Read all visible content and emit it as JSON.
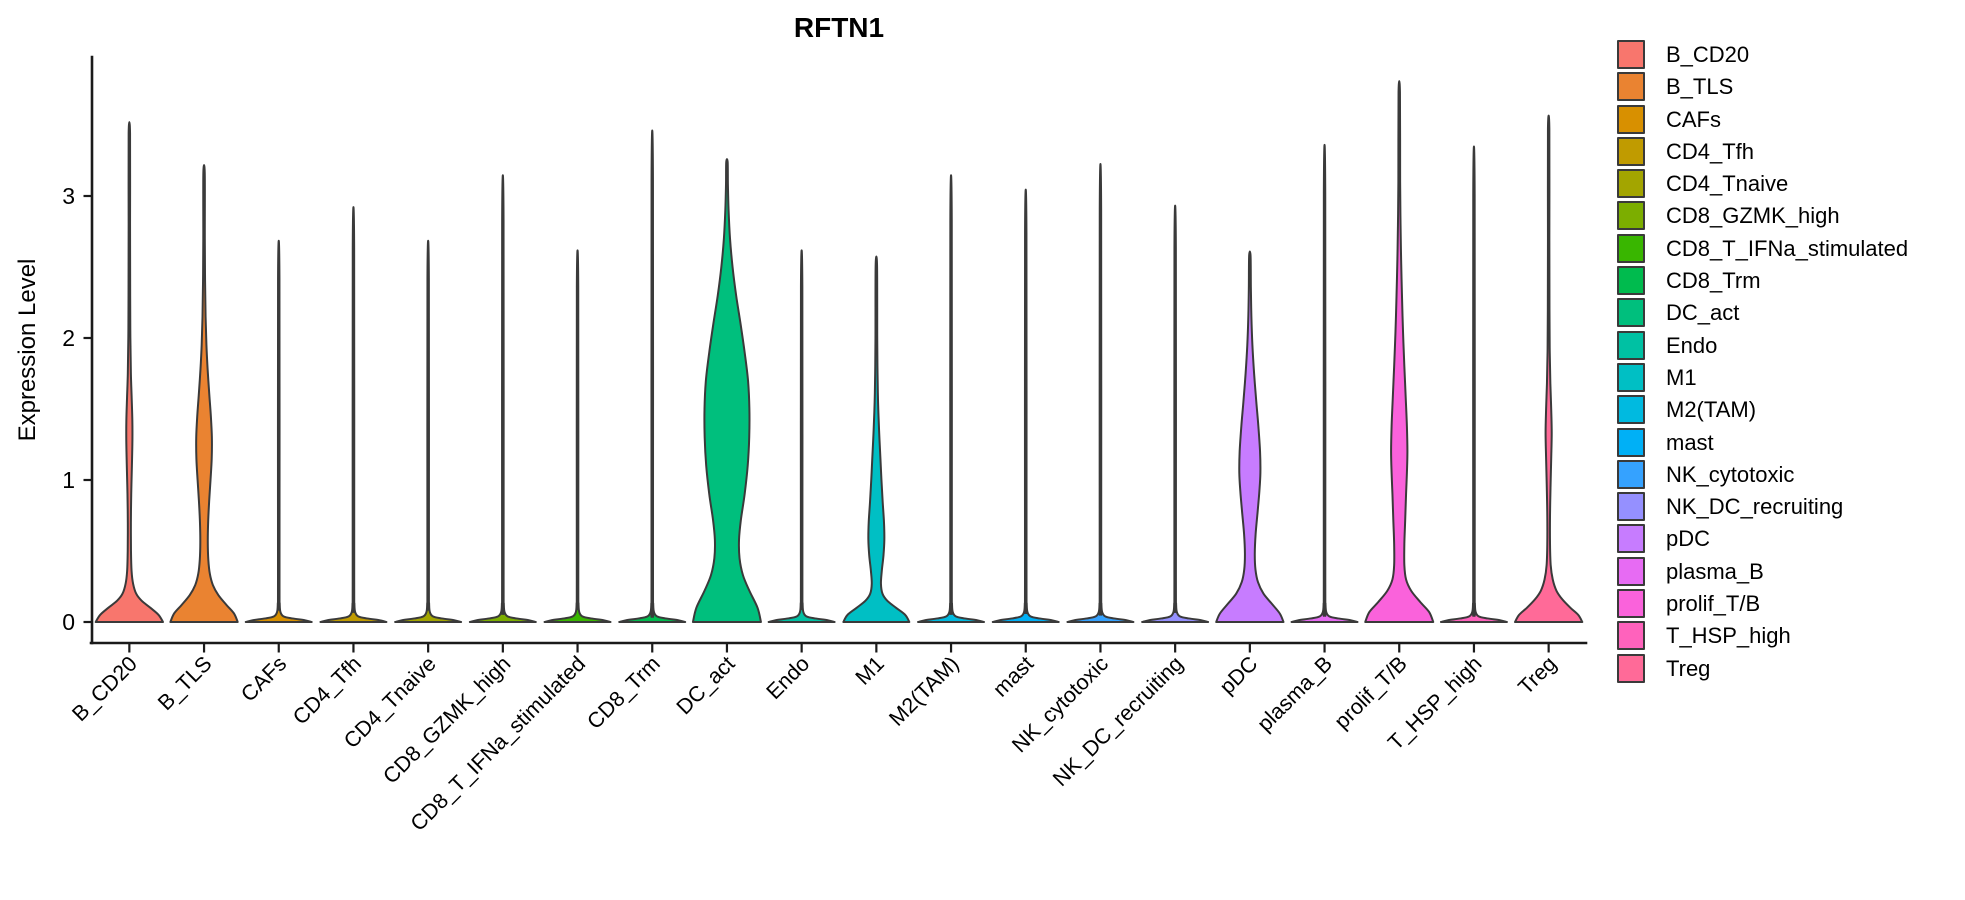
{
  "chart_data": {
    "type": "violin",
    "title": "RFTN1",
    "ylabel": "Expression Level",
    "xlabel": "",
    "grid": false,
    "legend_position": "right",
    "ylim": [
      0,
      3.98
    ],
    "yticks": [
      0,
      1,
      2,
      3
    ],
    "ytick_labels": [
      "0",
      "1",
      "2",
      "3"
    ],
    "categories": [
      "B_CD20",
      "B_TLS",
      "CAFs",
      "CD4_Tfh",
      "CD4_Tnaive",
      "CD8_GZMK_high",
      "CD8_T_IFNa_stimulated",
      "CD8_Trm",
      "DC_act",
      "Endo",
      "M1",
      "M2(TAM)",
      "mast",
      "NK_cytotoxic",
      "NK_DC_recruiting",
      "pDC",
      "plasma_B",
      "prolif_T/B",
      "T_HSP_high",
      "Treg"
    ],
    "series": [
      {
        "label": "B_CD20",
        "color": "#F8766D",
        "max_expression": 3.44,
        "density_profile": [
          [
            0,
            0.99
          ],
          [
            0.05,
            0.86
          ],
          [
            0.1,
            0.62
          ],
          [
            0.15,
            0.36
          ],
          [
            0.2,
            0.2
          ],
          [
            0.27,
            0.11
          ],
          [
            0.36,
            0.065
          ],
          [
            0.5,
            0.048
          ],
          [
            0.7,
            0.045
          ],
          [
            0.9,
            0.055
          ],
          [
            1.1,
            0.075
          ],
          [
            1.28,
            0.09
          ],
          [
            1.42,
            0.088
          ],
          [
            1.58,
            0.068
          ],
          [
            1.75,
            0.045
          ],
          [
            2.0,
            0.03
          ],
          [
            2.3,
            0.024
          ],
          [
            2.8,
            0.02
          ],
          [
            3.44,
            0.018
          ]
        ]
      },
      {
        "label": "B_TLS",
        "color": "#EA8331",
        "max_expression": 3.16,
        "density_profile": [
          [
            0,
            0.99
          ],
          [
            0.06,
            0.88
          ],
          [
            0.12,
            0.66
          ],
          [
            0.19,
            0.42
          ],
          [
            0.26,
            0.26
          ],
          [
            0.34,
            0.17
          ],
          [
            0.44,
            0.125
          ],
          [
            0.56,
            0.11
          ],
          [
            0.7,
            0.12
          ],
          [
            0.85,
            0.15
          ],
          [
            1.0,
            0.19
          ],
          [
            1.15,
            0.225
          ],
          [
            1.3,
            0.23
          ],
          [
            1.45,
            0.2
          ],
          [
            1.6,
            0.155
          ],
          [
            1.78,
            0.105
          ],
          [
            1.95,
            0.07
          ],
          [
            2.15,
            0.045
          ],
          [
            2.4,
            0.03
          ],
          [
            2.7,
            0.022
          ],
          [
            3.16,
            0.018
          ]
        ]
      },
      {
        "label": "CAFs",
        "color": "#D89000",
        "max_expression": 2.42,
        "density_profile": [
          [
            0,
            0.97
          ],
          [
            0.012,
            0.78
          ],
          [
            0.025,
            0.4
          ],
          [
            0.04,
            0.14
          ],
          [
            0.07,
            0.05
          ],
          [
            0.13,
            0.028
          ],
          [
            0.3,
            0.022
          ],
          [
            2.42,
            0.018
          ]
        ]
      },
      {
        "label": "CD4_Tfh",
        "color": "#C09B00",
        "max_expression": 2.63,
        "density_profile": [
          [
            0,
            0.97
          ],
          [
            0.012,
            0.78
          ],
          [
            0.025,
            0.4
          ],
          [
            0.04,
            0.14
          ],
          [
            0.07,
            0.05
          ],
          [
            0.13,
            0.028
          ],
          [
            0.3,
            0.022
          ],
          [
            2.63,
            0.018
          ]
        ]
      },
      {
        "label": "CD4_Tnaive",
        "color": "#A3A500",
        "max_expression": 2.42,
        "density_profile": [
          [
            0,
            0.97
          ],
          [
            0.012,
            0.78
          ],
          [
            0.025,
            0.4
          ],
          [
            0.04,
            0.14
          ],
          [
            0.07,
            0.05
          ],
          [
            0.13,
            0.028
          ],
          [
            0.3,
            0.022
          ],
          [
            2.42,
            0.018
          ]
        ]
      },
      {
        "label": "CD8_GZMK_high",
        "color": "#7CAE00",
        "max_expression": 2.83,
        "density_profile": [
          [
            0,
            0.97
          ],
          [
            0.012,
            0.78
          ],
          [
            0.025,
            0.4
          ],
          [
            0.04,
            0.14
          ],
          [
            0.07,
            0.05
          ],
          [
            0.13,
            0.028
          ],
          [
            0.3,
            0.022
          ],
          [
            2.83,
            0.018
          ]
        ]
      },
      {
        "label": "CD8_T_IFNa_stimulated",
        "color": "#39B600",
        "max_expression": 2.36,
        "density_profile": [
          [
            0,
            0.97
          ],
          [
            0.012,
            0.78
          ],
          [
            0.025,
            0.4
          ],
          [
            0.04,
            0.14
          ],
          [
            0.07,
            0.05
          ],
          [
            0.13,
            0.028
          ],
          [
            0.3,
            0.022
          ],
          [
            2.36,
            0.018
          ]
        ]
      },
      {
        "label": "CD8_Trm",
        "color": "#00BB4E",
        "max_expression": 3.11,
        "density_profile": [
          [
            0,
            0.97
          ],
          [
            0.012,
            0.78
          ],
          [
            0.025,
            0.4
          ],
          [
            0.04,
            0.14
          ],
          [
            0.07,
            0.05
          ],
          [
            0.13,
            0.028
          ],
          [
            0.3,
            0.022
          ],
          [
            3.11,
            0.018
          ]
        ]
      },
      {
        "label": "DC_act",
        "color": "#00BF7D",
        "max_expression": 3.24,
        "density_profile": [
          [
            0,
            1.0
          ],
          [
            0.1,
            0.9
          ],
          [
            0.22,
            0.66
          ],
          [
            0.33,
            0.47
          ],
          [
            0.45,
            0.37
          ],
          [
            0.58,
            0.355
          ],
          [
            0.72,
            0.41
          ],
          [
            0.9,
            0.52
          ],
          [
            1.1,
            0.61
          ],
          [
            1.3,
            0.655
          ],
          [
            1.5,
            0.66
          ],
          [
            1.7,
            0.62
          ],
          [
            1.9,
            0.52
          ],
          [
            2.1,
            0.4
          ],
          [
            2.3,
            0.27
          ],
          [
            2.5,
            0.165
          ],
          [
            2.7,
            0.09
          ],
          [
            2.9,
            0.048
          ],
          [
            3.08,
            0.028
          ],
          [
            3.24,
            0.02
          ]
        ]
      },
      {
        "label": "Endo",
        "color": "#00C1A3",
        "max_expression": 2.36,
        "density_profile": [
          [
            0,
            0.97
          ],
          [
            0.012,
            0.78
          ],
          [
            0.025,
            0.4
          ],
          [
            0.04,
            0.14
          ],
          [
            0.07,
            0.05
          ],
          [
            0.13,
            0.028
          ],
          [
            0.3,
            0.022
          ],
          [
            2.36,
            0.018
          ]
        ]
      },
      {
        "label": "M1",
        "color": "#00BFC4",
        "max_expression": 2.51,
        "density_profile": [
          [
            0,
            0.97
          ],
          [
            0.05,
            0.85
          ],
          [
            0.1,
            0.58
          ],
          [
            0.15,
            0.32
          ],
          [
            0.2,
            0.18
          ],
          [
            0.27,
            0.135
          ],
          [
            0.36,
            0.16
          ],
          [
            0.47,
            0.21
          ],
          [
            0.58,
            0.235
          ],
          [
            0.7,
            0.225
          ],
          [
            0.85,
            0.185
          ],
          [
            1.0,
            0.15
          ],
          [
            1.15,
            0.12
          ],
          [
            1.35,
            0.08
          ],
          [
            1.55,
            0.05
          ],
          [
            1.75,
            0.035
          ],
          [
            2.0,
            0.026
          ],
          [
            2.51,
            0.018
          ]
        ]
      },
      {
        "label": "M2(TAM)",
        "color": "#00BAE0",
        "max_expression": 2.83,
        "density_profile": [
          [
            0,
            0.97
          ],
          [
            0.012,
            0.78
          ],
          [
            0.025,
            0.4
          ],
          [
            0.04,
            0.14
          ],
          [
            0.07,
            0.05
          ],
          [
            0.13,
            0.028
          ],
          [
            0.3,
            0.022
          ],
          [
            2.83,
            0.018
          ]
        ]
      },
      {
        "label": "mast",
        "color": "#00B0F6",
        "max_expression": 2.74,
        "density_profile": [
          [
            0,
            0.97
          ],
          [
            0.012,
            0.78
          ],
          [
            0.025,
            0.4
          ],
          [
            0.04,
            0.14
          ],
          [
            0.07,
            0.05
          ],
          [
            0.13,
            0.028
          ],
          [
            0.3,
            0.022
          ],
          [
            2.74,
            0.018
          ]
        ]
      },
      {
        "label": "NK_cytotoxic",
        "color": "#35A2FF",
        "max_expression": 2.9,
        "density_profile": [
          [
            0,
            0.97
          ],
          [
            0.012,
            0.78
          ],
          [
            0.025,
            0.4
          ],
          [
            0.04,
            0.14
          ],
          [
            0.07,
            0.05
          ],
          [
            0.13,
            0.028
          ],
          [
            0.3,
            0.022
          ],
          [
            2.9,
            0.018
          ]
        ]
      },
      {
        "label": "NK_DC_recruiting",
        "color": "#9590FF",
        "max_expression": 2.64,
        "density_profile": [
          [
            0,
            0.97
          ],
          [
            0.012,
            0.78
          ],
          [
            0.025,
            0.4
          ],
          [
            0.04,
            0.14
          ],
          [
            0.07,
            0.05
          ],
          [
            0.13,
            0.028
          ],
          [
            0.3,
            0.022
          ],
          [
            2.64,
            0.018
          ]
        ]
      },
      {
        "label": "pDC",
        "color": "#C77CFF",
        "max_expression": 2.58,
        "density_profile": [
          [
            0,
            0.99
          ],
          [
            0.06,
            0.88
          ],
          [
            0.13,
            0.64
          ],
          [
            0.2,
            0.4
          ],
          [
            0.28,
            0.24
          ],
          [
            0.37,
            0.165
          ],
          [
            0.48,
            0.145
          ],
          [
            0.62,
            0.17
          ],
          [
            0.78,
            0.23
          ],
          [
            0.92,
            0.28
          ],
          [
            1.05,
            0.31
          ],
          [
            1.2,
            0.3
          ],
          [
            1.38,
            0.25
          ],
          [
            1.55,
            0.19
          ],
          [
            1.75,
            0.125
          ],
          [
            1.95,
            0.075
          ],
          [
            2.15,
            0.045
          ],
          [
            2.35,
            0.03
          ],
          [
            2.58,
            0.02
          ]
        ]
      },
      {
        "label": "plasma_B",
        "color": "#E76BF3",
        "max_expression": 3.02,
        "density_profile": [
          [
            0,
            0.97
          ],
          [
            0.012,
            0.78
          ],
          [
            0.025,
            0.4
          ],
          [
            0.04,
            0.14
          ],
          [
            0.07,
            0.05
          ],
          [
            0.13,
            0.028
          ],
          [
            0.3,
            0.022
          ],
          [
            3.02,
            0.018
          ]
        ]
      },
      {
        "label": "prolif_T/B",
        "color": "#FA62DB",
        "max_expression": 3.73,
        "density_profile": [
          [
            0,
            1.0
          ],
          [
            0.07,
            0.88
          ],
          [
            0.14,
            0.62
          ],
          [
            0.22,
            0.35
          ],
          [
            0.3,
            0.2
          ],
          [
            0.4,
            0.15
          ],
          [
            0.55,
            0.15
          ],
          [
            0.72,
            0.175
          ],
          [
            0.9,
            0.2
          ],
          [
            1.05,
            0.225
          ],
          [
            1.2,
            0.24
          ],
          [
            1.38,
            0.225
          ],
          [
            1.58,
            0.19
          ],
          [
            1.8,
            0.15
          ],
          [
            2.05,
            0.11
          ],
          [
            2.3,
            0.08
          ],
          [
            2.55,
            0.055
          ],
          [
            2.8,
            0.038
          ],
          [
            3.1,
            0.026
          ],
          [
            3.73,
            0.018
          ]
        ]
      },
      {
        "label": "T_HSP_high",
        "color": "#FF62BC",
        "max_expression": 3.01,
        "density_profile": [
          [
            0,
            0.97
          ],
          [
            0.012,
            0.78
          ],
          [
            0.025,
            0.4
          ],
          [
            0.04,
            0.14
          ],
          [
            0.07,
            0.05
          ],
          [
            0.13,
            0.028
          ],
          [
            0.3,
            0.022
          ],
          [
            3.01,
            0.018
          ]
        ]
      },
      {
        "label": "Treg",
        "color": "#FF6A98",
        "max_expression": 3.47,
        "density_profile": [
          [
            0,
            0.99
          ],
          [
            0.05,
            0.87
          ],
          [
            0.1,
            0.64
          ],
          [
            0.16,
            0.4
          ],
          [
            0.22,
            0.23
          ],
          [
            0.3,
            0.12
          ],
          [
            0.4,
            0.06
          ],
          [
            0.55,
            0.04
          ],
          [
            0.75,
            0.04
          ],
          [
            0.95,
            0.055
          ],
          [
            1.15,
            0.075
          ],
          [
            1.33,
            0.09
          ],
          [
            1.5,
            0.075
          ],
          [
            1.68,
            0.05
          ],
          [
            1.9,
            0.032
          ],
          [
            2.2,
            0.024
          ],
          [
            2.7,
            0.02
          ],
          [
            3.47,
            0.018
          ]
        ]
      }
    ]
  },
  "colors": {
    "background": "#FFFFFF",
    "axis": "#1A1A1A",
    "violin_outline": "#3A3A3A",
    "text": "#000000"
  }
}
